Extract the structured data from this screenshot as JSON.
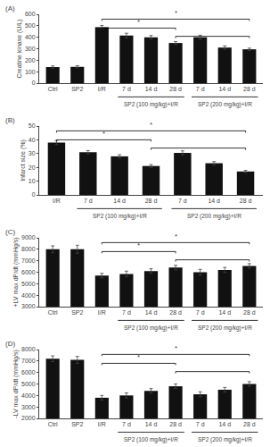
{
  "chart_data": [
    {
      "type": "bar",
      "title": "(A)",
      "ylabel": "Creatine kinase (U/L)",
      "categories": [
        "Ctrl",
        "SP2",
        "I/R",
        "7 d",
        "14 d",
        "28 d",
        "7 d",
        "14 d",
        "28 d"
      ],
      "values": [
        140,
        142,
        488,
        415,
        400,
        350,
        400,
        310,
        295
      ],
      "errors": [
        10,
        10,
        15,
        20,
        15,
        12,
        18,
        15,
        10
      ],
      "color": "#111111",
      "ylim": [
        0,
        600
      ],
      "yticks": [
        0,
        100,
        200,
        300,
        400,
        500,
        600
      ],
      "grid": false,
      "annotations": [
        "SP2 (100 mg/kg)+I/R",
        "SP2 (200 mg/kg)+I/R",
        "*",
        "*"
      ]
    },
    {
      "type": "bar",
      "title": "(B)",
      "ylabel": "Infarct size (%)",
      "categories": [
        "I/R",
        "7 d",
        "14 d",
        "28 d",
        "7 d",
        "14 d",
        "28 d"
      ],
      "values": [
        38,
        31,
        28,
        21,
        30.5,
        23,
        17
      ],
      "errors": [
        1.5,
        1.2,
        1.2,
        1.0,
        1.5,
        1.2,
        0.8
      ],
      "color": "#111111",
      "ylim": [
        0,
        50
      ],
      "yticks": [
        0,
        10,
        20,
        30,
        40,
        50
      ],
      "grid": false,
      "annotations": [
        "SP2 (100 mg/kg)+I/R",
        "SP2 (200 mg/kg)+I/R",
        "*",
        "*"
      ]
    },
    {
      "type": "bar",
      "title": "(C)",
      "ylabel": "+LV max dP/dt (mmHg/s)",
      "categories": [
        "Ctrl",
        "SP2",
        "I/R",
        "7 d",
        "14 d",
        "28 d",
        "7 d",
        "14 d",
        "28 d"
      ],
      "values": [
        8000,
        8000,
        5700,
        5850,
        6100,
        6400,
        6000,
        6200,
        6550
      ],
      "errors": [
        300,
        350,
        200,
        250,
        200,
        200,
        250,
        220,
        200
      ],
      "color": "#111111",
      "ylim": [
        3000,
        9000
      ],
      "yticks": [
        3000,
        4000,
        5000,
        6000,
        7000,
        8000,
        9000
      ],
      "grid": false,
      "annotations": [
        "SP2 (100 mg/kg)+I/R",
        "SP2 (200 mg/kg)+I/R",
        "*",
        "*"
      ]
    },
    {
      "type": "bar",
      "title": "(D)",
      "ylabel": "-LV max dP/dt (mmHg/s)",
      "categories": [
        "Ctrl",
        "SP2",
        "I/R",
        "7 d",
        "14 d",
        "28 d",
        "7 d",
        "14 d",
        "28 d"
      ],
      "values": [
        7200,
        7100,
        3800,
        4000,
        4400,
        4800,
        4100,
        4500,
        5000
      ],
      "errors": [
        250,
        300,
        200,
        220,
        200,
        200,
        220,
        200,
        200
      ],
      "color": "#111111",
      "ylim": [
        2000,
        8000
      ],
      "yticks": [
        2000,
        3000,
        4000,
        5000,
        6000,
        7000,
        8000
      ],
      "grid": false,
      "annotations": [
        "SP2 (100 mg/kg)+I/R",
        "SP2 (200 mg/kg)+I/R",
        "*",
        "*"
      ]
    }
  ]
}
